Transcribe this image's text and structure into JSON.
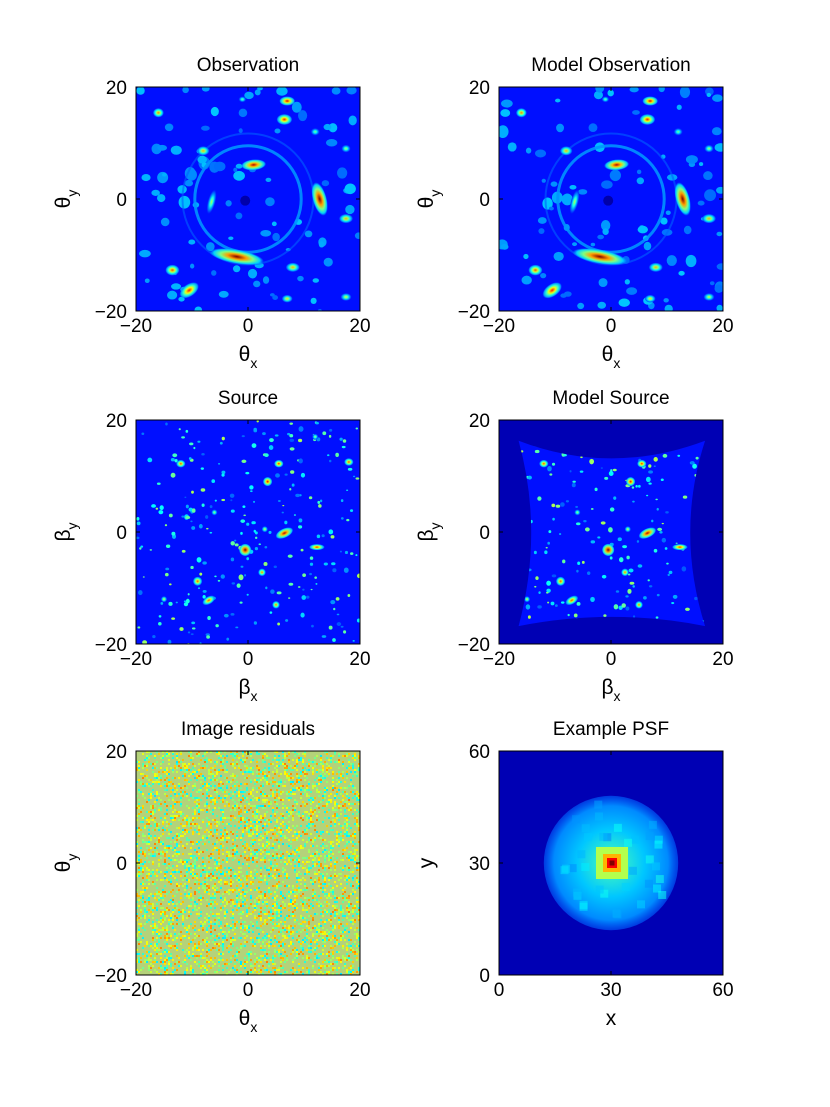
{
  "figure": {
    "colors": {
      "background": "#0000b4",
      "colormap": [
        "#00008f",
        "#0000ff",
        "#0080ff",
        "#00ffff",
        "#80ff80",
        "#ffff00",
        "#ff8000",
        "#ff0000",
        "#800000"
      ],
      "residual_base": "#b4d27a"
    }
  },
  "chart_data": [
    {
      "type": "heatmap",
      "title": "Observation",
      "xlabel": {
        "symbol": "θ",
        "sub": "x"
      },
      "ylabel": {
        "symbol": "θ",
        "sub": "y"
      },
      "xlim": [
        -20,
        20
      ],
      "ylim": [
        -20,
        20
      ],
      "xticks": [
        "−20",
        "0",
        "20"
      ],
      "yticks": [
        "−20",
        "0",
        "20"
      ],
      "features": {
        "ring_radius": 9.5,
        "blobs": [
          {
            "x": -2,
            "y": -10.3,
            "a": 3.5,
            "b": 0.9,
            "angle": 10,
            "peak": 1.0
          },
          {
            "x": 12.8,
            "y": 0,
            "a": 0.9,
            "b": 2.2,
            "angle": -15,
            "peak": 1.0
          },
          {
            "x": 1,
            "y": 6.1,
            "a": 1.6,
            "b": 0.7,
            "angle": -5,
            "peak": 0.95
          },
          {
            "x": 7,
            "y": 17.5,
            "a": 1.0,
            "b": 0.6,
            "angle": 0,
            "peak": 0.9
          },
          {
            "x": 6.5,
            "y": 14.2,
            "a": 1.0,
            "b": 0.7,
            "angle": 0,
            "peak": 0.85
          },
          {
            "x": -16,
            "y": 15.4,
            "a": 0.7,
            "b": 0.6,
            "angle": 0,
            "peak": 0.75
          },
          {
            "x": -8,
            "y": 8.6,
            "a": 0.8,
            "b": 0.6,
            "angle": 0,
            "peak": 0.7
          },
          {
            "x": 17.5,
            "y": -3.5,
            "a": 0.9,
            "b": 0.6,
            "angle": 0,
            "peak": 0.7
          },
          {
            "x": 8,
            "y": -12.2,
            "a": 0.9,
            "b": 0.6,
            "angle": 0,
            "peak": 0.7
          },
          {
            "x": -13.5,
            "y": -12.7,
            "a": 0.9,
            "b": 0.7,
            "angle": 0,
            "peak": 0.8
          },
          {
            "x": -10.5,
            "y": -16.3,
            "a": 1.4,
            "b": 0.8,
            "angle": -35,
            "peak": 0.85
          },
          {
            "x": 7,
            "y": -17.8,
            "a": 0.7,
            "b": 0.5,
            "angle": 0,
            "peak": 0.65
          },
          {
            "x": 17.5,
            "y": -17.5,
            "a": 0.7,
            "b": 0.5,
            "angle": 0,
            "peak": 0.6
          },
          {
            "x": 17.5,
            "y": 9,
            "a": 0.6,
            "b": 0.5,
            "angle": 0,
            "peak": 0.55
          },
          {
            "x": 12,
            "y": 12,
            "a": 0.6,
            "b": 0.5,
            "angle": 0,
            "peak": 0.5
          },
          {
            "x": -6.5,
            "y": -0.5,
            "a": 0.5,
            "b": 1.6,
            "angle": 15,
            "peak": 0.55
          },
          {
            "x": -1,
            "y": 17.8,
            "a": 0.5,
            "b": 0.4,
            "angle": 0,
            "peak": 0.5
          }
        ]
      }
    },
    {
      "type": "heatmap",
      "title": "Model Observation",
      "xlabel": {
        "symbol": "θ",
        "sub": "x"
      },
      "ylabel": {
        "symbol": "θ",
        "sub": "y"
      },
      "xlim": [
        -20,
        20
      ],
      "ylim": [
        -20,
        20
      ],
      "xticks": [
        "−20",
        "0",
        "20"
      ],
      "yticks": [
        "−20",
        "0",
        "20"
      ],
      "features": {
        "same_as": 0
      }
    },
    {
      "type": "heatmap",
      "title": "Source",
      "xlabel": {
        "symbol": "β",
        "sub": "x"
      },
      "ylabel": {
        "symbol": "β",
        "sub": "y"
      },
      "xlim": [
        -20,
        20
      ],
      "ylim": [
        -20,
        20
      ],
      "xticks": [
        "−20",
        "0",
        "20"
      ],
      "yticks": [
        "−20",
        "0",
        "20"
      ],
      "features": {
        "blobs": [
          {
            "x": -0.5,
            "y": -3.2,
            "a": 0.8,
            "b": 0.8,
            "angle": 0,
            "peak": 1.0
          },
          {
            "x": 6.5,
            "y": -0.2,
            "a": 1.2,
            "b": 0.6,
            "angle": -25,
            "peak": 0.95
          },
          {
            "x": 3.5,
            "y": 9,
            "a": 0.6,
            "b": 0.6,
            "angle": 0,
            "peak": 0.9
          },
          {
            "x": 5.5,
            "y": 12.2,
            "a": 0.6,
            "b": 0.5,
            "angle": 0,
            "peak": 0.85
          },
          {
            "x": -12,
            "y": 12.2,
            "a": 0.6,
            "b": 0.5,
            "angle": 0,
            "peak": 0.8
          },
          {
            "x": 18,
            "y": 12.5,
            "a": 0.6,
            "b": 0.5,
            "angle": 0,
            "peak": 0.8
          },
          {
            "x": 12.3,
            "y": -2.7,
            "a": 1.0,
            "b": 0.4,
            "angle": 0,
            "peak": 0.85
          },
          {
            "x": -9,
            "y": -8.8,
            "a": 0.6,
            "b": 0.6,
            "angle": 0,
            "peak": 0.8
          },
          {
            "x": -7,
            "y": -12.2,
            "a": 0.9,
            "b": 0.5,
            "angle": -30,
            "peak": 0.8
          },
          {
            "x": 2.5,
            "y": -7.2,
            "a": 0.5,
            "b": 0.5,
            "angle": 0,
            "peak": 0.75
          },
          {
            "x": 5,
            "y": -13,
            "a": 0.5,
            "b": 0.5,
            "angle": 0,
            "peak": 0.75
          },
          {
            "x": 3,
            "y": 0.5,
            "a": 0.4,
            "b": 0.4,
            "angle": 0,
            "peak": 0.6
          },
          {
            "x": -15,
            "y": -12,
            "a": 0.4,
            "b": 0.4,
            "angle": 0,
            "peak": 0.6
          },
          {
            "x": 12,
            "y": 17,
            "a": 0.4,
            "b": 0.4,
            "angle": 0,
            "peak": 0.55
          },
          {
            "x": -6,
            "y": 3.5,
            "a": 0.4,
            "b": 0.4,
            "angle": 0,
            "peak": 0.55
          }
        ]
      }
    },
    {
      "type": "heatmap",
      "title": "Model Source",
      "xlabel": {
        "symbol": "β",
        "sub": "x"
      },
      "ylabel": {
        "symbol": "β",
        "sub": "y"
      },
      "xlim": [
        -20,
        20
      ],
      "ylim": [
        -20,
        20
      ],
      "xticks": [
        "−20",
        "0",
        "20"
      ],
      "yticks": [
        "−20",
        "0",
        "20"
      ],
      "features": {
        "same_as": 2,
        "footprint": "pincushion"
      }
    },
    {
      "type": "heatmap",
      "title": "Image residuals",
      "xlabel": {
        "symbol": "θ",
        "sub": "x"
      },
      "ylabel": {
        "symbol": "θ",
        "sub": "y"
      },
      "xlim": [
        -20,
        20
      ],
      "ylim": [
        -20,
        20
      ],
      "xticks": [
        "−20",
        "0",
        "20"
      ],
      "yticks": [
        "−20",
        "0",
        "20"
      ],
      "features": {
        "noise": true
      }
    },
    {
      "type": "heatmap",
      "title": "Example PSF",
      "xlabel": {
        "symbol": "x",
        "sub": ""
      },
      "ylabel": {
        "symbol": "y",
        "sub": ""
      },
      "xlim": [
        0,
        60
      ],
      "ylim": [
        0,
        60
      ],
      "xticks": [
        "0",
        "30",
        "60"
      ],
      "yticks": [
        "0",
        "30",
        "60"
      ],
      "features": {
        "center": [
          30,
          30
        ],
        "halo_radius": 18
      }
    }
  ]
}
